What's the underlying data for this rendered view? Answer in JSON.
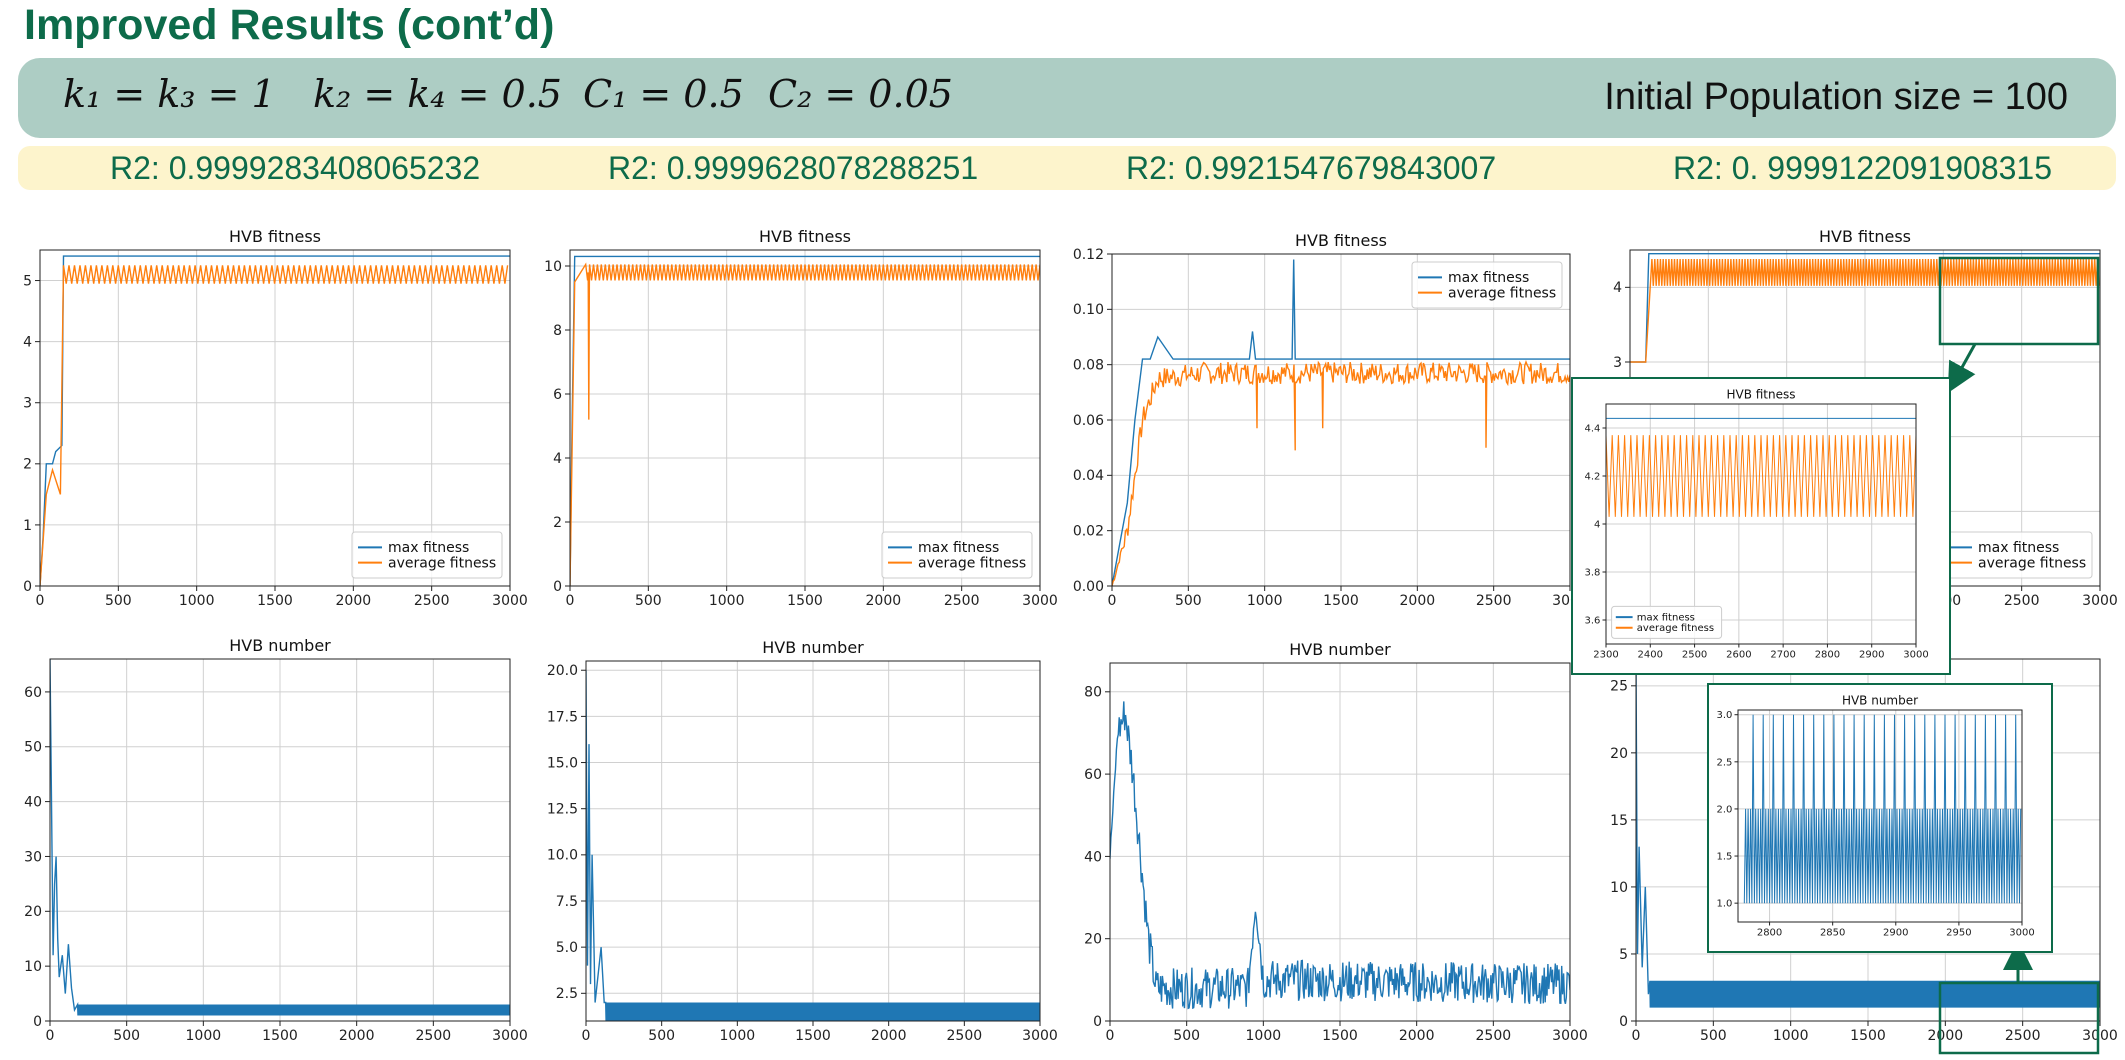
{
  "slide": {
    "title": "Improved Results (cont’d)",
    "params": [
      "k₁ = k₃ = 1",
      "k₂ = k₄ = 0.5",
      "C₁ = 0.5",
      "C₂ = 0.05"
    ],
    "population": "Initial Population size = 100",
    "r2": [
      "R2: 0.9999283408065232",
      "R2: 0.9999628078288251",
      "R2:  0.9921547679843007",
      "R2: 0. 9999122091908315"
    ]
  },
  "colors": {
    "max": "#1f77b4",
    "avg": "#ff7f0e",
    "accent": "#0d6b4a",
    "param_bg": "#adcdc4",
    "r2_bg": "#fdf4cc"
  },
  "chart_data": [
    {
      "id": "fit1",
      "type": "line",
      "title": "HVB fitness",
      "xlim": [
        0,
        3000
      ],
      "ylim": [
        0,
        5.5
      ],
      "xticks": [
        0,
        500,
        1000,
        1500,
        2000,
        2500,
        3000
      ],
      "yticks": [
        0,
        1,
        2,
        3,
        4,
        5
      ],
      "series": [
        {
          "name": "max fitness",
          "color": "#1f77b4",
          "x": [
            0,
            20,
            40,
            80,
            100,
            140,
            150,
            3000
          ],
          "y": [
            0,
            0.8,
            2.0,
            2.0,
            2.2,
            2.3,
            5.4,
            5.4
          ]
        },
        {
          "name": "average fitness",
          "color": "#ff7f0e",
          "kind": "osc",
          "points": [
            [
              0,
              0
            ],
            [
              40,
              1.5
            ],
            [
              80,
              1.9
            ],
            [
              130,
              1.5
            ],
            [
              150,
              5.1
            ],
            [
              3000,
              5.1
            ]
          ],
          "amp": 0.15,
          "period": 35
        }
      ],
      "legend_position": "lower right",
      "grid": true
    },
    {
      "id": "fit2",
      "type": "line",
      "title": "HVB fitness",
      "xlim": [
        0,
        3000
      ],
      "ylim": [
        0,
        10.5
      ],
      "xticks": [
        0,
        500,
        1000,
        1500,
        2000,
        2500,
        3000
      ],
      "yticks": [
        0,
        2,
        4,
        6,
        8,
        10
      ],
      "series": [
        {
          "name": "max fitness",
          "color": "#1f77b4",
          "x": [
            0,
            10,
            30,
            3000
          ],
          "y": [
            0,
            4,
            10.3,
            10.3
          ]
        },
        {
          "name": "average fitness",
          "color": "#ff7f0e",
          "kind": "osc",
          "points": [
            [
              0,
              0
            ],
            [
              30,
              9.5
            ],
            [
              100,
              9.8
            ],
            [
              3000,
              9.8
            ]
          ],
          "amp": 0.25,
          "period": 25,
          "dips": [
            [
              120,
              5.2
            ]
          ]
        }
      ],
      "legend_position": "lower right",
      "grid": true
    },
    {
      "id": "fit3",
      "type": "line",
      "title": "HVB fitness",
      "xlim": [
        0,
        3000
      ],
      "ylim": [
        0,
        0.12
      ],
      "xticks": [
        0,
        500,
        1000,
        1500,
        2000,
        2500,
        3000
      ],
      "yticks": [
        0.0,
        0.02,
        0.04,
        0.06,
        0.08,
        0.1,
        0.12
      ],
      "ytick_labels": [
        "0.00",
        "0.02",
        "0.04",
        "0.06",
        "0.08",
        "0.10",
        "0.12"
      ],
      "series": [
        {
          "name": "max fitness",
          "color": "#1f77b4",
          "x": [
            0,
            50,
            100,
            150,
            200,
            250,
            300,
            400,
            900,
            920,
            940,
            1180,
            1190,
            1200,
            3000
          ],
          "y": [
            0,
            0.015,
            0.03,
            0.06,
            0.082,
            0.082,
            0.09,
            0.082,
            0.082,
            0.092,
            0.082,
            0.082,
            0.118,
            0.082,
            0.082
          ]
        },
        {
          "name": "average fitness",
          "color": "#ff7f0e",
          "kind": "noise",
          "points": [
            [
              0,
              0
            ],
            [
              100,
              0.02
            ],
            [
              200,
              0.06
            ],
            [
              300,
              0.075
            ],
            [
              600,
              0.077
            ],
            [
              3000,
              0.077
            ]
          ],
          "amp": 0.004,
          "step": 8,
          "dips": [
            [
              950,
              0.057
            ],
            [
              1200,
              0.049
            ],
            [
              1380,
              0.057
            ],
            [
              2450,
              0.05
            ]
          ]
        }
      ],
      "legend_position": "upper right",
      "grid": true
    },
    {
      "id": "fit4",
      "type": "line",
      "title": "HVB fitness",
      "xlim": [
        0,
        3000
      ],
      "ylim": [
        0,
        4.5
      ],
      "xticks": [
        0,
        500,
        1000,
        1500,
        2000,
        2500,
        3000
      ],
      "yticks": [
        0,
        1,
        2,
        3,
        4
      ],
      "series": [
        {
          "name": "max fitness",
          "color": "#1f77b4",
          "x": [
            0,
            100,
            120,
            3000
          ],
          "y": [
            3.0,
            3.0,
            4.45,
            4.45
          ]
        },
        {
          "name": "average fitness",
          "color": "#ff7f0e",
          "kind": "osc",
          "points": [
            [
              0,
              3.0
            ],
            [
              100,
              3.0
            ],
            [
              140,
              4.2
            ],
            [
              3000,
              4.2
            ]
          ],
          "amp": 0.18,
          "period": 18
        }
      ],
      "legend_position": "lower right",
      "grid": true
    },
    {
      "id": "fit4zoom",
      "type": "line",
      "title": "HVB fitness",
      "xlim": [
        2300,
        3000
      ],
      "ylim": [
        3.5,
        4.5
      ],
      "xticks": [
        2300,
        2400,
        2500,
        2600,
        2700,
        2800,
        2900,
        3000
      ],
      "yticks": [
        3.6,
        3.8,
        4.0,
        4.2,
        4.4
      ],
      "series": [
        {
          "name": "max fitness",
          "color": "#1f77b4",
          "x": [
            2300,
            3000
          ],
          "y": [
            4.44,
            4.44
          ]
        },
        {
          "name": "average fitness",
          "color": "#ff7f0e",
          "kind": "osc",
          "points": [
            [
              2300,
              4.2
            ],
            [
              3000,
              4.2
            ]
          ],
          "amp": 0.17,
          "period": 14
        }
      ],
      "legend_position": "lower left",
      "grid": true
    },
    {
      "id": "num1",
      "type": "line",
      "title": "HVB number",
      "xlim": [
        0,
        3000
      ],
      "ylim": [
        0,
        66
      ],
      "xticks": [
        0,
        500,
        1000,
        1500,
        2000,
        2500,
        3000
      ],
      "yticks": [
        0,
        10,
        20,
        30,
        40,
        50,
        60
      ],
      "series": [
        {
          "name": "HVB number",
          "color": "#1f77b4",
          "kind": "band",
          "points": [
            [
              0,
              66
            ],
            [
              10,
              40
            ],
            [
              20,
              12
            ],
            [
              30,
              25
            ],
            [
              40,
              30
            ],
            [
              50,
              15
            ],
            [
              60,
              8
            ],
            [
              80,
              12
            ],
            [
              100,
              5
            ],
            [
              120,
              14
            ],
            [
              140,
              6
            ],
            [
              160,
              2
            ],
            [
              3000,
              2
            ]
          ],
          "lo": 1,
          "hi": 3,
          "band_start": 180
        }
      ],
      "grid": true
    },
    {
      "id": "num2",
      "type": "line",
      "title": "HVB number",
      "xlim": [
        0,
        3000
      ],
      "ylim": [
        1,
        20.5
      ],
      "xticks": [
        0,
        500,
        1000,
        1500,
        2000,
        2500,
        3000
      ],
      "yticks": [
        2.5,
        5.0,
        7.5,
        10.0,
        12.5,
        15.0,
        17.5,
        20.0
      ],
      "ytick_labels": [
        "2.5",
        "5.0",
        "7.5",
        "10.0",
        "12.5",
        "15.0",
        "17.5",
        "20.0"
      ],
      "series": [
        {
          "name": "HVB number",
          "color": "#1f77b4",
          "kind": "band",
          "points": [
            [
              0,
              20
            ],
            [
              10,
              4
            ],
            [
              20,
              16
            ],
            [
              30,
              3
            ],
            [
              40,
              10
            ],
            [
              60,
              2
            ],
            [
              100,
              5
            ],
            [
              120,
              2
            ],
            [
              3000,
              2
            ]
          ],
          "lo": 1,
          "hi": 2,
          "band_start": 130
        }
      ],
      "grid": true
    },
    {
      "id": "num3",
      "type": "line",
      "title": "HVB number",
      "xlim": [
        0,
        3000
      ],
      "ylim": [
        0,
        87
      ],
      "xticks": [
        0,
        500,
        1000,
        1500,
        2000,
        2500,
        3000
      ],
      "yticks": [
        0,
        20,
        40,
        60,
        80
      ],
      "series": [
        {
          "name": "HVB number",
          "color": "#1f77b4",
          "kind": "noise",
          "points": [
            [
              0,
              40
            ],
            [
              50,
              70
            ],
            [
              100,
              75
            ],
            [
              150,
              60
            ],
            [
              200,
              40
            ],
            [
              250,
              20
            ],
            [
              300,
              8
            ],
            [
              900,
              8
            ],
            [
              950,
              30
            ],
            [
              1000,
              10
            ],
            [
              3000,
              9
            ]
          ],
          "amp": 5,
          "step": 6
        }
      ],
      "grid": true
    },
    {
      "id": "num4",
      "type": "line",
      "title": "",
      "xlim": [
        0,
        3000
      ],
      "ylim": [
        0,
        27
      ],
      "xticks": [
        0,
        500,
        1000,
        1500,
        2000,
        2500,
        3000
      ],
      "yticks": [
        0,
        5,
        10,
        15,
        20,
        25
      ],
      "series": [
        {
          "name": "HVB number",
          "color": "#1f77b4",
          "kind": "band",
          "points": [
            [
              0,
              27
            ],
            [
              10,
              5
            ],
            [
              20,
              13
            ],
            [
              40,
              4
            ],
            [
              60,
              10
            ],
            [
              80,
              2
            ],
            [
              3000,
              2
            ]
          ],
          "lo": 1,
          "hi": 3,
          "band_start": 90
        }
      ],
      "grid": true
    },
    {
      "id": "num4zoom",
      "type": "line",
      "title": "HVB number",
      "xlim": [
        2775,
        3000
      ],
      "ylim": [
        0.8,
        3.05
      ],
      "xticks": [
        2800,
        2850,
        2900,
        2950,
        3000
      ],
      "yticks": [
        1.0,
        1.5,
        2.0,
        2.5,
        3.0
      ],
      "ytick_labels": [
        "1.0",
        "1.5",
        "2.0",
        "2.5",
        "3.0"
      ],
      "series": [
        {
          "name": "HVB number",
          "color": "#1f77b4",
          "kind": "pattern",
          "levels": [
            1,
            2,
            1,
            2,
            1,
            2,
            1,
            3
          ],
          "step": 1
        }
      ],
      "grid": true
    }
  ]
}
